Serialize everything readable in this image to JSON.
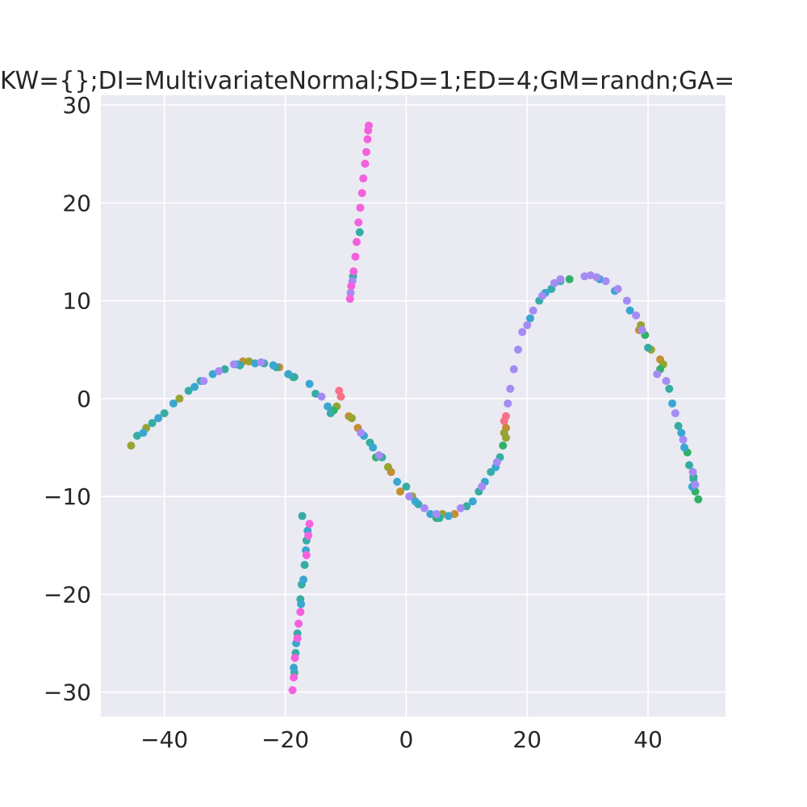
{
  "chart_data": {
    "type": "scatter",
    "title": "KW={};DI=MultivariateNormal;SD=1;ED=4;GM=randn;GA=",
    "xlabel": "",
    "ylabel": "",
    "xlim": [
      -50.5,
      52.8
    ],
    "ylim": [
      -32.5,
      31
    ],
    "xticks": [
      -40,
      -20,
      0,
      20,
      40
    ],
    "yticks": [
      -30,
      -20,
      -10,
      0,
      10,
      20,
      30
    ],
    "xtick_labels": [
      "−40",
      "−20",
      "0",
      "20",
      "40"
    ],
    "ytick_labels": [
      "−30",
      "−20",
      "−10",
      "0",
      "10",
      "20",
      "30"
    ],
    "grid": true,
    "background": "#eaeaf2",
    "series": [
      {
        "color": "#f77189",
        "points": [
          [
            16.2,
            -2.3
          ],
          [
            -11.1,
            0.8
          ],
          [
            -10.8,
            0.2
          ],
          [
            16.5,
            -1.8
          ]
        ]
      },
      {
        "color": "#c48d32",
        "points": [
          [
            -27,
            3.8
          ],
          [
            -21,
            3.2
          ],
          [
            -9.5,
            -1.8
          ],
          [
            -8,
            -3
          ],
          [
            -2.5,
            -7.5
          ],
          [
            -1,
            -9.5
          ],
          [
            8,
            -11.8
          ],
          [
            16.5,
            -3
          ],
          [
            42,
            4
          ],
          [
            38.5,
            7
          ]
        ]
      },
      {
        "color": "#97a431",
        "points": [
          [
            -45.5,
            -4.8
          ],
          [
            -43,
            -3
          ],
          [
            -37.5,
            0
          ],
          [
            -26,
            3.8
          ],
          [
            -19.5,
            2.5
          ],
          [
            -11.5,
            -0.8
          ],
          [
            -9,
            -2
          ],
          [
            -3,
            -7
          ],
          [
            1,
            -10
          ],
          [
            6,
            -11.8
          ],
          [
            16.2,
            -3.5
          ],
          [
            16.5,
            -4
          ],
          [
            38.8,
            7.5
          ],
          [
            40.5,
            5
          ],
          [
            42.5,
            3.5
          ]
        ]
      },
      {
        "color": "#32b166",
        "points": [
          [
            -18.7,
            2.2
          ],
          [
            -12,
            -1.2
          ],
          [
            -5,
            -6
          ],
          [
            5,
            -12.2
          ],
          [
            16,
            -4.8
          ],
          [
            27,
            12.2
          ],
          [
            39.5,
            6.5
          ],
          [
            42,
            3
          ],
          [
            46.5,
            -5.5
          ],
          [
            47.5,
            -8
          ],
          [
            48.3,
            -10.3
          ],
          [
            47.8,
            -9.5
          ]
        ]
      },
      {
        "color": "#36ada4",
        "points": [
          [
            -44.5,
            -3.8
          ],
          [
            -42,
            -2.5
          ],
          [
            -40,
            -1.5
          ],
          [
            -36,
            0.8
          ],
          [
            -34,
            1.8
          ],
          [
            -30,
            3
          ],
          [
            -27.5,
            3.4
          ],
          [
            -23.5,
            3.6
          ],
          [
            -21.5,
            3.2
          ],
          [
            -18.5,
            2.2
          ],
          [
            -15,
            0.5
          ],
          [
            -12.5,
            -1.5
          ],
          [
            -6,
            -4.5
          ],
          [
            -4,
            -6
          ],
          [
            0,
            -9
          ],
          [
            2,
            -10.8
          ],
          [
            5.5,
            -12.2
          ],
          [
            10,
            -11
          ],
          [
            12,
            -9.5
          ],
          [
            14,
            -7.5
          ],
          [
            15.5,
            -6
          ],
          [
            22,
            10
          ],
          [
            24,
            11.2
          ],
          [
            25.5,
            12
          ],
          [
            40,
            5.2
          ],
          [
            43.5,
            1
          ],
          [
            45,
            -2.8
          ],
          [
            46.8,
            -6.8
          ],
          [
            47.5,
            -8.2
          ],
          [
            -17.2,
            -12
          ],
          [
            -16.5,
            -14.5
          ],
          [
            -16.8,
            -17
          ],
          [
            -17.3,
            -19
          ],
          [
            -17.5,
            -20.5
          ],
          [
            -18,
            -24
          ],
          [
            -18.3,
            -26
          ],
          [
            -18.5,
            -28
          ],
          [
            -8.8,
            12.5
          ],
          [
            -7.7,
            17
          ]
        ]
      },
      {
        "color": "#39a7d0",
        "points": [
          [
            -43.5,
            -3.5
          ],
          [
            -41,
            -2
          ],
          [
            -38.5,
            -0.5
          ],
          [
            -35,
            1.2
          ],
          [
            -32,
            2.5
          ],
          [
            -28,
            3.5
          ],
          [
            -25,
            3.6
          ],
          [
            -22,
            3.4
          ],
          [
            -19.5,
            2.5
          ],
          [
            -16,
            1.5
          ],
          [
            -13,
            -0.8
          ],
          [
            -7,
            -3.8
          ],
          [
            -5.5,
            -5
          ],
          [
            -1.5,
            -8.5
          ],
          [
            1.5,
            -10.5
          ],
          [
            4,
            -11.8
          ],
          [
            7,
            -12
          ],
          [
            11,
            -10.5
          ],
          [
            13,
            -8.5
          ],
          [
            14.8,
            -7
          ],
          [
            20.5,
            8.2
          ],
          [
            23,
            10.8
          ],
          [
            32,
            12.2
          ],
          [
            34.5,
            11
          ],
          [
            37,
            9
          ],
          [
            44,
            -0.5
          ],
          [
            45.5,
            -3.5
          ],
          [
            46,
            -5
          ],
          [
            47.3,
            -9
          ],
          [
            -16.3,
            -13.5
          ],
          [
            -16.6,
            -15.5
          ],
          [
            -17,
            -18.5
          ],
          [
            -17.4,
            -21
          ],
          [
            -18.2,
            -25
          ],
          [
            -18.6,
            -27.5
          ]
        ]
      },
      {
        "color": "#a48cf4",
        "points": [
          [
            -33.5,
            1.8
          ],
          [
            -31,
            2.8
          ],
          [
            -28.5,
            3.5
          ],
          [
            -24,
            3.7
          ],
          [
            -14,
            0.2
          ],
          [
            -7.5,
            -3.5
          ],
          [
            -4.5,
            -5.8
          ],
          [
            0.5,
            -10
          ],
          [
            3,
            -11.2
          ],
          [
            5,
            -11.8
          ],
          [
            9,
            -11.2
          ],
          [
            12.5,
            -9
          ],
          [
            15,
            -6.5
          ],
          [
            16.8,
            -0.5
          ],
          [
            17.2,
            1
          ],
          [
            17.8,
            3
          ],
          [
            18.5,
            5
          ],
          [
            19.2,
            6.8
          ],
          [
            20,
            7.5
          ],
          [
            21,
            9
          ],
          [
            22.5,
            10.5
          ],
          [
            24.5,
            11.8
          ],
          [
            25.5,
            12.2
          ],
          [
            29.5,
            12.5
          ],
          [
            30.5,
            12.6
          ],
          [
            31.5,
            12.4
          ],
          [
            33,
            12
          ],
          [
            35,
            11.2
          ],
          [
            36.5,
            10
          ],
          [
            38,
            8.5
          ],
          [
            39,
            7
          ],
          [
            41.5,
            2.5
          ],
          [
            43,
            1.8
          ],
          [
            44.5,
            -1.5
          ],
          [
            45.8,
            -4.2
          ],
          [
            47.4,
            -7.5
          ],
          [
            47.8,
            -8.8
          ],
          [
            -9.2,
            10.8
          ],
          [
            -8.9,
            12
          ]
        ]
      },
      {
        "color": "#f461dd",
        "points": [
          [
            -16,
            -12.8
          ],
          [
            -16.2,
            -14
          ],
          [
            -16.5,
            -16
          ],
          [
            -17.5,
            -21.8
          ],
          [
            -17.8,
            -23
          ],
          [
            -18,
            -24.5
          ],
          [
            -18.4,
            -26.5
          ],
          [
            -18.6,
            -28.5
          ],
          [
            -18.8,
            -29.8
          ],
          [
            -9.3,
            10.2
          ],
          [
            -9.1,
            11.5
          ],
          [
            -8.7,
            13
          ],
          [
            -8.4,
            14.5
          ],
          [
            -8.2,
            16
          ],
          [
            -7.9,
            18
          ],
          [
            -7.6,
            19.5
          ],
          [
            -7.3,
            21
          ],
          [
            -7.1,
            22.5
          ],
          [
            -6.8,
            24
          ],
          [
            -6.6,
            25.2
          ],
          [
            -6.4,
            26.5
          ],
          [
            -6.3,
            27.4
          ],
          [
            -6.2,
            27.9
          ]
        ]
      }
    ]
  }
}
